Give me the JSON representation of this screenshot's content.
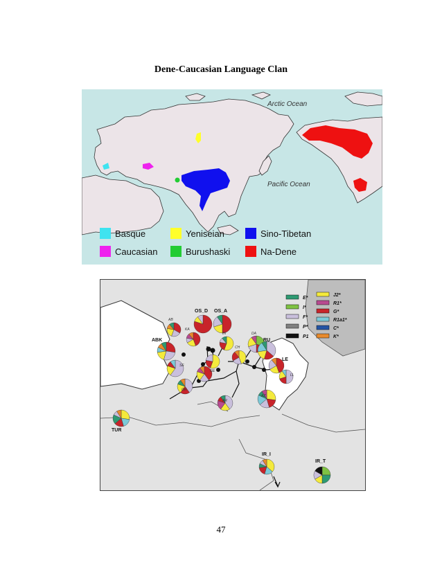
{
  "document": {
    "title": "Dene-Caucasian Language Clan",
    "page_number": "47"
  },
  "map1": {
    "ocean_labels": {
      "arctic": "Arctic Ocean",
      "pacific": "Pacific Ocean"
    },
    "legend": [
      {
        "label": "Basque",
        "color": "#3fe3f0"
      },
      {
        "label": "Yeniseian",
        "color": "#ffff2a"
      },
      {
        "label": "Sino-Tibetan",
        "color": "#1010ee"
      },
      {
        "label": "Caucasian",
        "color": "#ee22ee"
      },
      {
        "label": "Burushaski",
        "color": "#22cc33"
      },
      {
        "label": "Na-Dene",
        "color": "#ee1111"
      }
    ]
  },
  "map2": {
    "legend": [
      {
        "label": "E*",
        "color": "#2e9a72"
      },
      {
        "label": "I*",
        "color": "#7fc243"
      },
      {
        "label": "F*",
        "color": "#c9bfdc"
      },
      {
        "label": "P*",
        "color": "#808080"
      },
      {
        "label": "P1",
        "color": "#111111"
      },
      {
        "label": "J2*",
        "color": "#f4ea3c"
      },
      {
        "label": "R1*",
        "color": "#b84a90"
      },
      {
        "label": "G*",
        "color": "#c8242a"
      },
      {
        "label": "R1a1*",
        "color": "#7ccad8"
      },
      {
        "label": "C*",
        "color": "#2454a4"
      },
      {
        "label": "K*",
        "color": "#e88a2c"
      }
    ],
    "population_labels": {
      "abk": "ABK",
      "os_d": "OS_D",
      "os_a": "OS_A",
      "ru": "RU",
      "le": "LE",
      "tur": "TUR",
      "ir_i": "IR_I",
      "ir_t": "IR_T",
      "ab": "AB",
      "ka": "KA",
      "in": "IN",
      "ch": "CH",
      "da": "DA",
      "se": "SE",
      "ge": "GE",
      "gr": "GR",
      "az": "AZ",
      "ar": "AR",
      "ll": "LL"
    }
  }
}
